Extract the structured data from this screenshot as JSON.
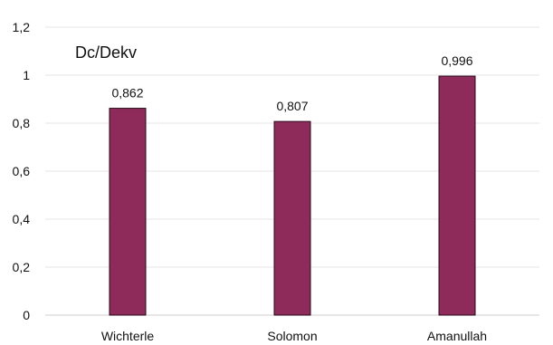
{
  "chart_data": {
    "type": "bar",
    "title": "Dc/Dekv",
    "xlabel": "",
    "ylabel": "",
    "categories": [
      "Wichterle",
      "Solomon",
      "Amanullah"
    ],
    "values": [
      0.862,
      0.807,
      0.996
    ],
    "value_labels": [
      "0,862",
      "0,807",
      "0,996"
    ],
    "ylim": [
      0,
      1.2
    ],
    "yticks": [
      0,
      0.2,
      0.4,
      0.6,
      0.8,
      1,
      1.2
    ],
    "ytick_labels": [
      "0",
      "0,2",
      "0,4",
      "0,6",
      "0,8",
      "1",
      "1,2"
    ],
    "grid": true,
    "legend": "none",
    "bar_color": "#8e2b5b",
    "bar_edge_color": "#2a0a1a"
  }
}
